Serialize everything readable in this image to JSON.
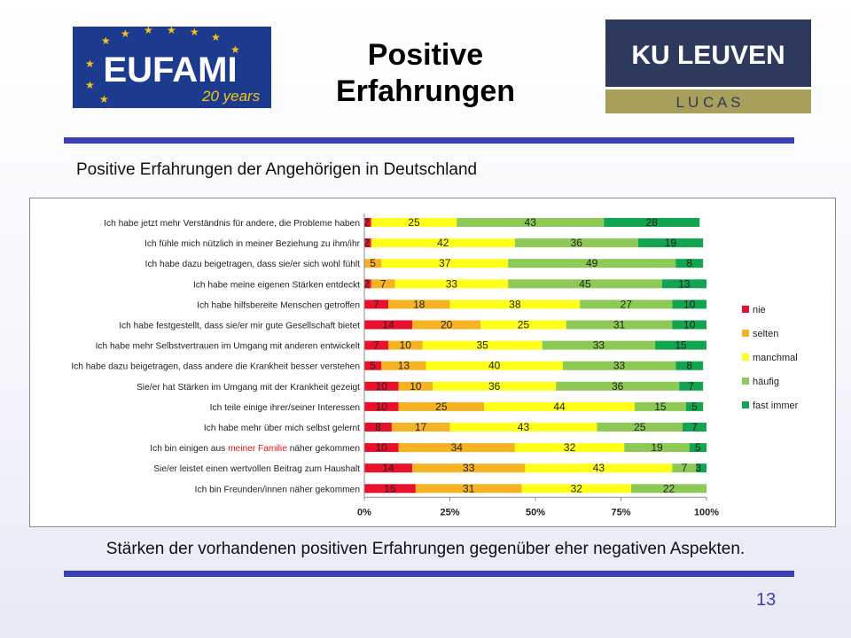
{
  "header": {
    "title_line1": "Positive",
    "title_line2": "Erfahrungen",
    "logo_left": {
      "text": "EUFAMI",
      "subtext": "20 years",
      "bg": "#1c3b8f",
      "accent": "#f5c518"
    },
    "logo_right": {
      "text": "KU LEUVEN",
      "subtext": "L U C A S",
      "bg": "#2d3a5c",
      "accent": "#a8a05a"
    }
  },
  "chart_heading": "Positive Erfahrungen der Angehörigen in Deutschland",
  "chart_data": {
    "type": "bar",
    "orientation": "horizontal",
    "stacked": "percent",
    "categories": [
      "Ich habe jetzt mehr Verständnis für andere, die Probleme haben",
      "Ich fühle mich nützlich in meiner Beziehung zu ihm/ihr",
      "Ich habe dazu beigetragen, dass sie/er sich wohl fühlt",
      "Ich habe meine eigenen Stärken entdeckt",
      "Ich habe hilfsbereite Menschen getroffen",
      "Ich habe festgestellt, dass sie/er mir gute Gesellschaft bietet",
      "Ich habe mehr Selbstvertrauen im Umgang mit anderen entwickelt",
      "Ich habe dazu beigetragen, dass andere die Krankheit besser verstehen",
      "Sie/er hat Stärken im Umgang mit der Krankheit gezeigt",
      "Ich teile einige ihrer/seiner Interessen",
      "Ich habe mehr über mich selbst gelernt",
      "Ich bin einigen aus meiner Familie näher gekommen",
      "Sie/er leistet einen wertvollen Beitrag zum Haushalt",
      "Ich bin Freunden/innen näher gekommen"
    ],
    "highlight": {
      "row": 11,
      "part": "meiner Familie",
      "before": "Ich bin einigen aus ",
      "after": " näher gekommen",
      "color": "#e01515"
    },
    "series": [
      {
        "name": "nie",
        "color": "#e8102a",
        "values": [
          2,
          2,
          0,
          2,
          7,
          14,
          7,
          5,
          10,
          10,
          8,
          10,
          14,
          15
        ]
      },
      {
        "name": "selten",
        "color": "#f5b324",
        "values": [
          0,
          0,
          5,
          7,
          18,
          20,
          10,
          13,
          10,
          25,
          17,
          34,
          33,
          31
        ]
      },
      {
        "name": "manchmal",
        "color": "#ffff1a",
        "values": [
          25,
          42,
          37,
          33,
          38,
          25,
          35,
          40,
          36,
          44,
          43,
          32,
          43,
          32
        ]
      },
      {
        "name": "häufig",
        "color": "#8cca55",
        "values": [
          43,
          36,
          49,
          45,
          27,
          31,
          33,
          33,
          36,
          15,
          25,
          19,
          7,
          22
        ]
      },
      {
        "name": "fast immer",
        "color": "#12a550",
        "values": [
          28,
          19,
          8,
          13,
          10,
          10,
          15,
          8,
          7,
          5,
          7,
          5,
          3,
          0
        ]
      }
    ],
    "segment_labels": [
      [
        "2",
        "",
        "25",
        "43",
        "28"
      ],
      [
        "2",
        "",
        "42",
        "36",
        "19"
      ],
      [
        "",
        "5",
        "37",
        "49",
        "8"
      ],
      [
        "2",
        "7",
        "33",
        "45",
        "13"
      ],
      [
        "7",
        "18",
        "38",
        "27",
        "10"
      ],
      [
        "14",
        "20",
        "25",
        "31",
        "10"
      ],
      [
        "7",
        "10",
        "35",
        "33",
        "15"
      ],
      [
        "5",
        "13",
        "40",
        "33",
        "8"
      ],
      [
        "10",
        "10",
        "36",
        "36",
        "7"
      ],
      [
        "10",
        "25",
        "44",
        "15",
        "5"
      ],
      [
        "8",
        "17",
        "43",
        "25",
        "7"
      ],
      [
        "10",
        "34",
        "32",
        "19",
        "5"
      ],
      [
        "14",
        "33",
        "43",
        "7",
        "3"
      ],
      [
        "15",
        "31",
        "32",
        "22",
        ""
      ]
    ],
    "x_ticks": [
      "0%",
      "25%",
      "50%",
      "75%",
      "100%"
    ],
    "xlim": [
      0,
      100
    ],
    "legend_position": "right",
    "grid": false
  },
  "footer_text": "Stärken der vorhandenen positiven Erfahrungen gegenüber eher negativen Aspekten.",
  "page_number": "13"
}
